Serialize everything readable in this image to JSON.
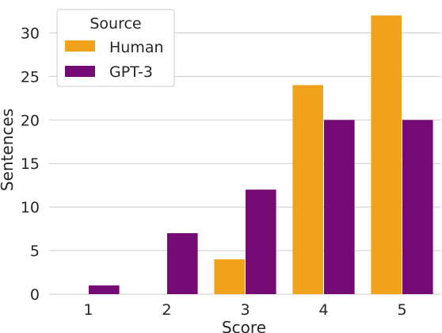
{
  "chart_data": {
    "type": "bar",
    "xlabel": "Score",
    "ylabel": "Sentences",
    "categories": [
      "1",
      "2",
      "3",
      "4",
      "5"
    ],
    "yticks": [
      "0",
      "5",
      "10",
      "15",
      "20",
      "25",
      "30"
    ],
    "ylim": [
      0,
      33.5
    ],
    "grid": "horizontal",
    "legend": {
      "title": "Source",
      "placement": "top-left"
    },
    "series": [
      {
        "name": "Human",
        "color": "#f0a21a",
        "values": [
          0,
          0,
          4,
          24,
          32
        ]
      },
      {
        "name": "GPT-3",
        "color": "#760a74",
        "values": [
          1,
          7,
          12,
          20,
          20
        ]
      }
    ]
  }
}
